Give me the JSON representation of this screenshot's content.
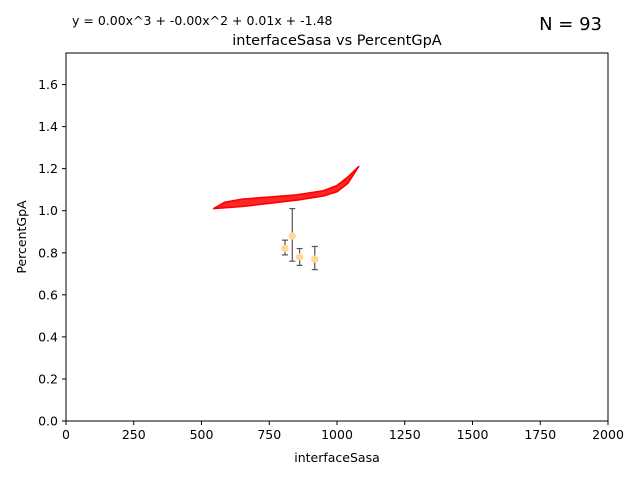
{
  "chart_data": {
    "type": "scatter",
    "title": "interfaceSasa vs PercentGpA",
    "xlabel": "interfaceSasa",
    "ylabel": "PercentGpA",
    "xlim": [
      0,
      2000
    ],
    "ylim": [
      0,
      1.75
    ],
    "xticks": [
      0,
      250,
      500,
      750,
      1000,
      1250,
      1500,
      1750,
      2000
    ],
    "yticks": [
      0.0,
      0.2,
      0.4,
      0.6,
      0.8,
      1.0,
      1.2,
      1.4,
      1.6
    ],
    "xtick_labels": [
      "0",
      "250",
      "500",
      "750",
      "1000",
      "1250",
      "1500",
      "1750",
      "2000"
    ],
    "ytick_labels": [
      "0.0",
      "0.2",
      "0.4",
      "0.6",
      "0.8",
      "1.0",
      "1.2",
      "1.4",
      "1.6"
    ],
    "grid": false,
    "annotations": {
      "equation": "y = 0.00x^3 + -0.00x^2 + 0.01x + -1.48",
      "n_label": "N = 93"
    },
    "series": [
      {
        "kind": "points_with_error",
        "color": "#ffd79a",
        "error_color": "#555555",
        "points": [
          {
            "x": 808,
            "y": 0.82,
            "ylow": 0.79,
            "yhigh": 0.86
          },
          {
            "x": 835,
            "y": 0.88,
            "ylow": 0.76,
            "yhigh": 1.01
          },
          {
            "x": 862,
            "y": 0.78,
            "ylow": 0.74,
            "yhigh": 0.82
          },
          {
            "x": 918,
            "y": 0.77,
            "ylow": 0.72,
            "yhigh": 0.83
          }
        ]
      },
      {
        "kind": "fit_curve",
        "color": "#ff0000",
        "upper": [
          [
            585,
            1.04
          ],
          [
            650,
            1.055
          ],
          [
            750,
            1.065
          ],
          [
            850,
            1.075
          ],
          [
            950,
            1.095
          ],
          [
            1000,
            1.12
          ],
          [
            1040,
            1.16
          ],
          [
            1080,
            1.21
          ]
        ],
        "lower": [
          [
            545,
            1.01
          ],
          [
            650,
            1.02
          ],
          [
            750,
            1.035
          ],
          [
            850,
            1.05
          ],
          [
            950,
            1.07
          ],
          [
            1000,
            1.09
          ],
          [
            1040,
            1.13
          ],
          [
            1080,
            1.21
          ]
        ]
      }
    ]
  }
}
